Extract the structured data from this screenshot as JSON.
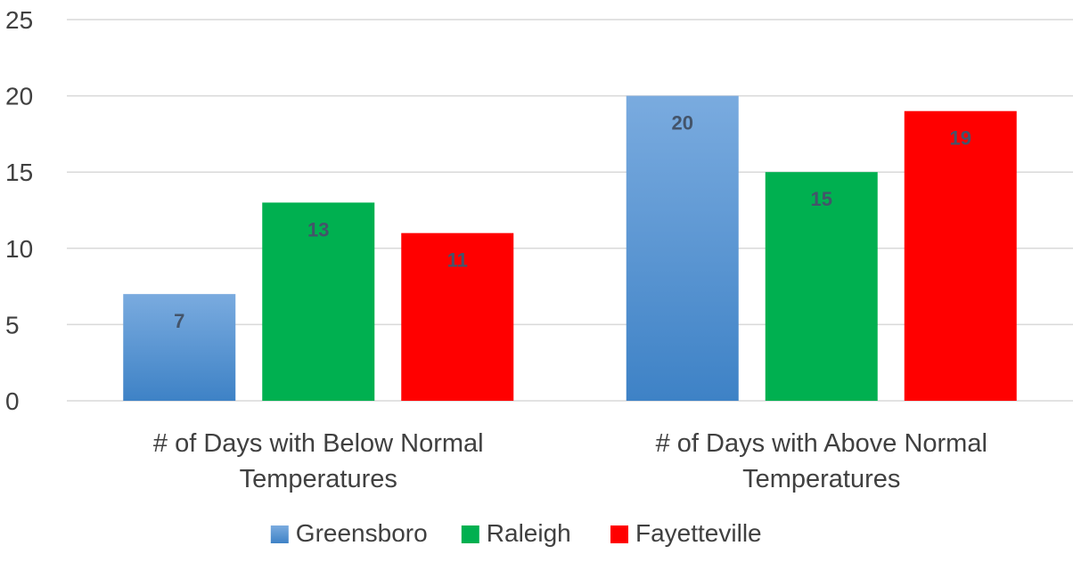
{
  "chart_data": {
    "type": "bar",
    "title": "",
    "xlabel": "",
    "ylabel": "",
    "categories": [
      [
        "# of Days with Below Normal",
        "Temperatures"
      ],
      [
        "# of Days with Above Normal",
        "Temperatures"
      ]
    ],
    "series": [
      {
        "name": "Greensboro",
        "values": [
          7,
          20
        ],
        "color": "#5b9bd5",
        "gradient": true
      },
      {
        "name": "Raleigh",
        "values": [
          13,
          15
        ],
        "color": "#00b050"
      },
      {
        "name": "Fayetteville",
        "values": [
          11,
          19
        ],
        "color": "#ff0000"
      }
    ],
    "ylim": [
      0,
      25
    ],
    "yticks": [
      0,
      5,
      10,
      15,
      20,
      25
    ],
    "grid": true,
    "legend_position": "bottom",
    "data_labels": true
  }
}
